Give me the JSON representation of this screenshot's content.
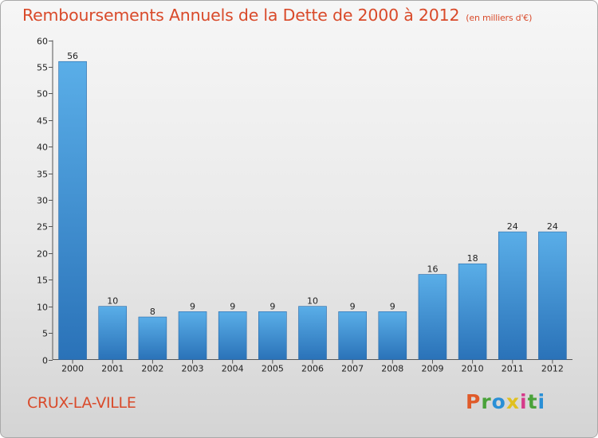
{
  "header": {
    "title": "Remboursements Annuels de la Dette de 2000 à 2012",
    "unit": "(en milliers d'€)"
  },
  "footer": {
    "town": "CRUX-LA-VILLE",
    "logo": [
      "P",
      "r",
      "o",
      "x",
      "i",
      "t",
      "i"
    ]
  },
  "chart_data": {
    "type": "bar",
    "title": "Remboursements Annuels de la Dette de 2000 à 2012",
    "subtitle": "(en milliers d'€)",
    "categories": [
      "2000",
      "2001",
      "2002",
      "2003",
      "2004",
      "2005",
      "2006",
      "2007",
      "2008",
      "2009",
      "2010",
      "2011",
      "2012"
    ],
    "values": [
      56,
      10,
      8,
      9,
      9,
      9,
      10,
      9,
      9,
      16,
      18,
      24,
      24
    ],
    "xlabel": "",
    "ylabel": "",
    "ylim": [
      0,
      60
    ],
    "yticks": [
      0,
      5,
      10,
      15,
      20,
      25,
      30,
      35,
      40,
      45,
      50,
      55,
      60
    ],
    "grid": false,
    "bar_color": "#3a8fd6"
  }
}
